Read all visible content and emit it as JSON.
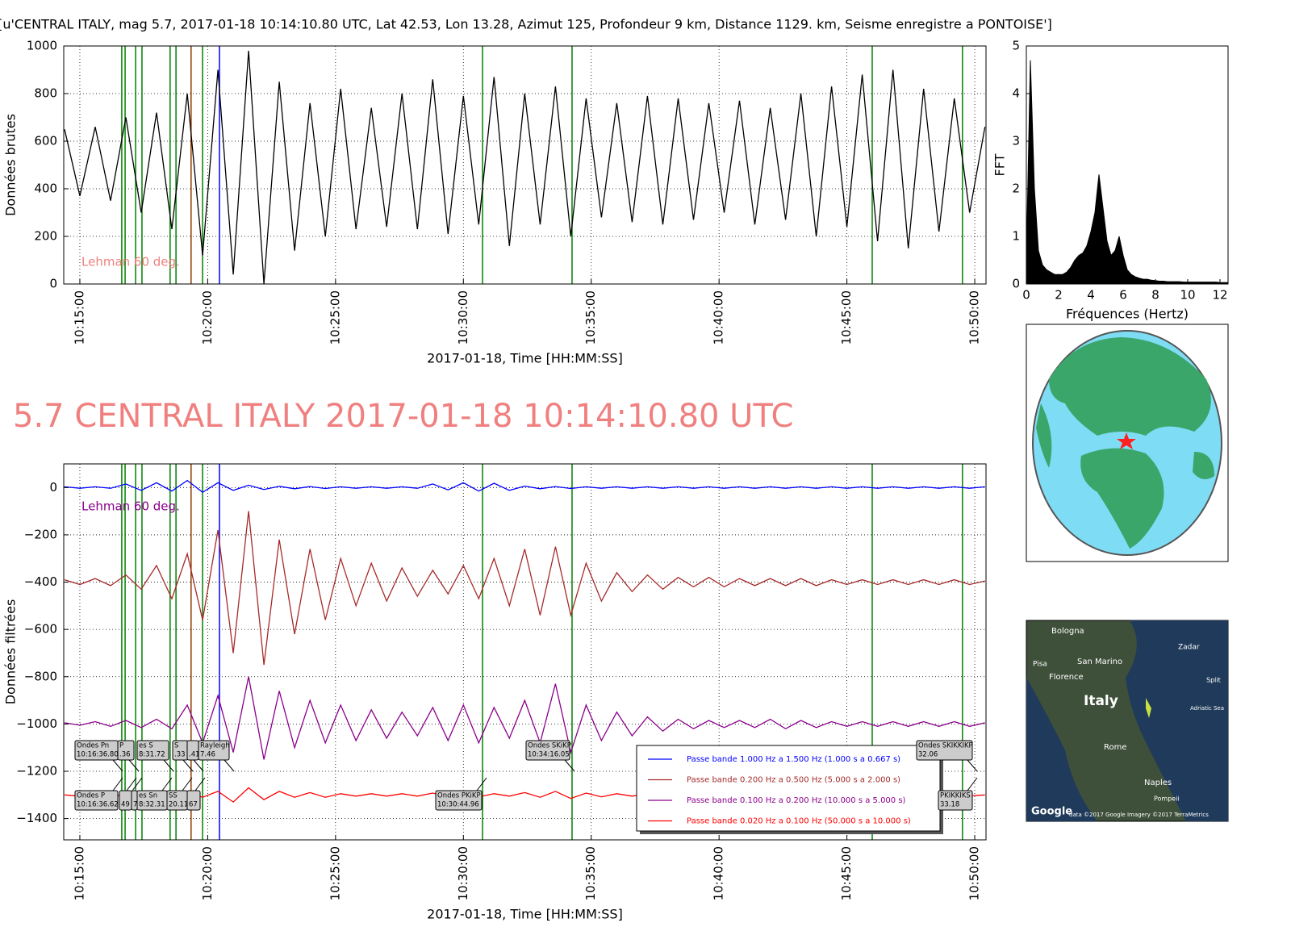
{
  "chart_data": [
    {
      "type": "line",
      "title": "[u'CENTRAL ITALY, mag 5.7, 2017-01-18 10:14:10.80 UTC, Lat 42.53, Lon 13.28, Azimut 125, Profondeur 9 km, Distance 1129. km, Seisme enregistre a PONTOISE']",
      "xlabel": "2017-01-18, Time [HH:MM:SS]",
      "ylabel": "Données brutes",
      "xlim": [
        14.37,
        50.44
      ],
      "ylim": [
        0,
        1000
      ],
      "xticks": [
        {
          "value": 15,
          "label": "10:15:00"
        },
        {
          "value": 20,
          "label": "10:20:00"
        },
        {
          "value": 25,
          "label": "10:25:00"
        },
        {
          "value": 30,
          "label": "10:30:00"
        },
        {
          "value": 35,
          "label": "10:35:00"
        },
        {
          "value": 40,
          "label": "10:40:00"
        },
        {
          "value": 45,
          "label": "10:45:00"
        },
        {
          "value": 50,
          "label": "10:50:00"
        }
      ],
      "yticks": [
        0,
        200,
        400,
        600,
        800,
        1000
      ],
      "grid": true,
      "x": [
        14.4,
        15.0,
        15.6,
        16.2,
        16.8,
        17.4,
        18.0,
        18.6,
        19.2,
        19.8,
        20.4,
        21.0,
        21.6,
        22.2,
        22.8,
        23.4,
        24.0,
        24.6,
        25.2,
        25.8,
        26.4,
        27.0,
        27.6,
        28.2,
        28.8,
        29.4,
        30.0,
        30.6,
        31.2,
        31.8,
        32.4,
        33.0,
        33.6,
        34.2,
        34.8,
        35.4,
        36.0,
        36.6,
        37.2,
        37.8,
        38.4,
        39.0,
        39.6,
        40.2,
        40.8,
        41.4,
        42.0,
        42.6,
        43.2,
        43.8,
        44.4,
        45.0,
        45.6,
        46.2,
        46.8,
        47.4,
        48.0,
        48.6,
        49.2,
        49.8,
        50.4
      ],
      "color": "#000000",
      "values": [
        650,
        370,
        660,
        350,
        700,
        300,
        720,
        230,
        800,
        120,
        900,
        40,
        980,
        0,
        850,
        140,
        760,
        200,
        820,
        230,
        740,
        240,
        800,
        230,
        860,
        210,
        790,
        250,
        870,
        160,
        800,
        250,
        830,
        200,
        780,
        280,
        760,
        260,
        790,
        250,
        780,
        270,
        760,
        300,
        770,
        250,
        740,
        270,
        800,
        200,
        830,
        240,
        880,
        180,
        900,
        150,
        820,
        220,
        780,
        300,
        660
      ],
      "markers": {
        "x": [
          16.64,
          16.77,
          17.18,
          17.43,
          18.53,
          18.76,
          19.35,
          19.8,
          20.46,
          30.75,
          34.25,
          45.99,
          49.52
        ],
        "colors": [
          "#008000",
          "#008000",
          "#008000",
          "#008000",
          "#008000",
          "#008000",
          "#8b3a00",
          "#008000",
          "#0000ff",
          "#008000",
          "#008000",
          "#008000",
          "#008000"
        ]
      },
      "note": {
        "text": "Lehman 60 deg.",
        "color": "#f08080"
      }
    },
    {
      "type": "area",
      "xlabel": "Fréquences (Hertz)",
      "ylabel": "FFT",
      "xlim": [
        0,
        12.5
      ],
      "ylim": [
        0,
        5
      ],
      "xticks": [
        0,
        2,
        4,
        6,
        8,
        10,
        12
      ],
      "yticks": [
        0,
        1,
        2,
        3,
        4,
        5
      ],
      "grid": false,
      "color": "#000000",
      "x": [
        0,
        0.25,
        0.5,
        0.75,
        1,
        1.25,
        1.5,
        1.75,
        2,
        2.25,
        2.5,
        2.75,
        3,
        3.25,
        3.5,
        3.75,
        4,
        4.25,
        4.5,
        4.75,
        5,
        5.25,
        5.5,
        5.75,
        6,
        6.25,
        6.5,
        6.75,
        7,
        7.25,
        7.5,
        7.75,
        8,
        8.25,
        8.5,
        8.75,
        9,
        9.25,
        9.5,
        9.75,
        10,
        10.25,
        10.5,
        10.75,
        11,
        11.25,
        11.5,
        11.75,
        12,
        12.25,
        12.5
      ],
      "values": [
        0.5,
        4.7,
        2.0,
        0.7,
        0.4,
        0.3,
        0.25,
        0.2,
        0.2,
        0.2,
        0.25,
        0.35,
        0.5,
        0.6,
        0.65,
        0.8,
        1.1,
        1.5,
        2.3,
        1.6,
        0.9,
        0.6,
        0.7,
        1.0,
        0.6,
        0.3,
        0.2,
        0.15,
        0.12,
        0.1,
        0.1,
        0.08,
        0.07,
        0.06,
        0.06,
        0.05,
        0.05,
        0.05,
        0.05,
        0.04,
        0.04,
        0.04,
        0.04,
        0.04,
        0.04,
        0.04,
        0.04,
        0.04,
        0.03,
        0.03,
        0.03
      ]
    },
    {
      "type": "line",
      "xlabel": "2017-01-18, Time [HH:MM:SS]",
      "ylabel": "Données filtrées",
      "xlim": [
        14.37,
        50.44
      ],
      "ylim": [
        -1490,
        100
      ],
      "xticks": [
        {
          "value": 15,
          "label": "10:15:00"
        },
        {
          "value": 20,
          "label": "10:20:00"
        },
        {
          "value": 25,
          "label": "10:25:00"
        },
        {
          "value": 30,
          "label": "10:30:00"
        },
        {
          "value": 35,
          "label": "10:35:00"
        },
        {
          "value": 40,
          "label": "10:40:00"
        },
        {
          "value": 45,
          "label": "10:45:00"
        },
        {
          "value": 50,
          "label": "10:50:00"
        }
      ],
      "yticks": [
        0,
        {
          "value": -200,
          "label": "−200"
        },
        {
          "value": -400,
          "label": "−400"
        },
        {
          "value": -600,
          "label": "−600"
        },
        {
          "value": -800,
          "label": "−800"
        },
        {
          "value": -1000,
          "label": "−1000"
        },
        {
          "value": -1200,
          "label": "−1200"
        },
        {
          "value": -1400,
          "label": "−1400"
        }
      ],
      "grid": true,
      "legend": "lower right",
      "x": [
        14.4,
        15.0,
        15.6,
        16.2,
        16.8,
        17.4,
        18.0,
        18.6,
        19.2,
        19.8,
        20.4,
        21.0,
        21.6,
        22.2,
        22.8,
        23.4,
        24.0,
        24.6,
        25.2,
        25.8,
        26.4,
        27.0,
        27.6,
        28.2,
        28.8,
        29.4,
        30.0,
        30.6,
        31.2,
        31.8,
        32.4,
        33.0,
        33.6,
        34.2,
        34.8,
        35.4,
        36.0,
        36.6,
        37.2,
        37.8,
        38.4,
        39.0,
        39.6,
        40.2,
        40.8,
        41.4,
        42.0,
        42.6,
        43.2,
        43.8,
        44.4,
        45.0,
        45.6,
        46.2,
        46.8,
        47.4,
        48.0,
        48.6,
        49.2,
        49.8,
        50.4
      ],
      "series": [
        {
          "name": "Passe bande 1.000 Hz a 1.500 Hz (1.000 s a 0.667 s)",
          "color": "#0000ff",
          "values": [
            3,
            -3,
            3,
            -3,
            15,
            -12,
            20,
            -15,
            30,
            -20,
            20,
            -12,
            10,
            -8,
            5,
            -5,
            4,
            -4,
            3,
            -3,
            3,
            -3,
            3,
            -3,
            15,
            -10,
            20,
            -15,
            18,
            -12,
            6,
            -5,
            4,
            -4,
            3,
            -3,
            3,
            -3,
            3,
            -3,
            3,
            -3,
            3,
            -3,
            3,
            -3,
            3,
            -3,
            3,
            -3,
            3,
            -3,
            3,
            -3,
            3,
            -3,
            3,
            -3,
            3,
            -3,
            3
          ]
        },
        {
          "name": "Passe bande 0.200 Hz a 0.500 Hz (5.000 s a 2.000 s)",
          "color": "#a52a2a",
          "values": [
            -390,
            -410,
            -385,
            -415,
            -370,
            -430,
            -330,
            -470,
            -280,
            -560,
            -180,
            -700,
            -100,
            -750,
            -220,
            -620,
            -260,
            -560,
            -300,
            -500,
            -320,
            -480,
            -340,
            -460,
            -350,
            -450,
            -330,
            -470,
            -300,
            -500,
            -260,
            -540,
            -250,
            -540,
            -320,
            -480,
            -360,
            -440,
            -370,
            -430,
            -380,
            -420,
            -380,
            -420,
            -385,
            -415,
            -385,
            -415,
            -385,
            -415,
            -390,
            -410,
            -390,
            -410,
            -390,
            -410,
            -390,
            -410,
            -390,
            -410,
            -395
          ]
        },
        {
          "name": "Passe bande 0.100 Hz a 0.200 Hz (10.000 s a 5.000 s)",
          "color": "#8b008b",
          "values": [
            -995,
            -1005,
            -990,
            -1010,
            -985,
            -1015,
            -980,
            -1020,
            -920,
            -1080,
            -880,
            -1120,
            -800,
            -1150,
            -860,
            -1100,
            -900,
            -1080,
            -920,
            -1070,
            -940,
            -1060,
            -950,
            -1050,
            -930,
            -1070,
            -920,
            -1080,
            -930,
            -1060,
            -900,
            -1080,
            -830,
            -1120,
            -920,
            -1070,
            -950,
            -1050,
            -970,
            -1030,
            -980,
            -1020,
            -985,
            -1015,
            -985,
            -1015,
            -980,
            -1020,
            -985,
            -1015,
            -990,
            -1010,
            -990,
            -1010,
            -990,
            -1010,
            -990,
            -1010,
            -990,
            -1010,
            -995
          ]
        },
        {
          "name": "Passe bande 0.020 Hz a 0.100 Hz (50.000 s a 10.000 s)",
          "color": "#ff0000",
          "values": [
            -1300,
            -1305,
            -1295,
            -1305,
            -1300,
            -1300,
            -1295,
            -1310,
            -1290,
            -1310,
            -1285,
            -1330,
            -1270,
            -1320,
            -1285,
            -1310,
            -1290,
            -1310,
            -1295,
            -1305,
            -1295,
            -1305,
            -1295,
            -1305,
            -1292,
            -1308,
            -1292,
            -1308,
            -1295,
            -1305,
            -1290,
            -1310,
            -1285,
            -1315,
            -1292,
            -1308,
            -1295,
            -1305,
            -1295,
            -1305,
            -1296,
            -1304,
            -1296,
            -1304,
            -1296,
            -1304,
            -1296,
            -1304,
            -1296,
            -1304,
            -1296,
            -1304,
            -1296,
            -1304,
            -1296,
            -1304,
            -1296,
            -1304,
            -1296,
            -1304,
            -1300
          ]
        }
      ],
      "markers": {
        "x": [
          16.64,
          16.77,
          17.18,
          17.43,
          18.53,
          18.76,
          19.35,
          19.8,
          20.46,
          30.75,
          34.25,
          45.99,
          49.52
        ],
        "colors": [
          "#008000",
          "#008000",
          "#008000",
          "#008000",
          "#008000",
          "#008000",
          "#8b3a00",
          "#008000",
          "#0000ff",
          "#008000",
          "#008000",
          "#008000",
          "#008000"
        ]
      },
      "note": {
        "text": "Lehman 60 deg.",
        "color": "#8b008b"
      },
      "annotations": [
        {
          "lines": [
            "Ondes Pn",
            "10:16:36.80"
          ]
        },
        {
          "lines": [
            "P",
            ".36"
          ]
        },
        {
          "lines": [
            "es S",
            "8:31.72"
          ]
        },
        {
          "lines": [
            "S",
            ".33"
          ]
        },
        {
          "lines": [
            "",
            ".41"
          ]
        },
        {
          "lines": [
            "Rayleigh",
            "7.46"
          ]
        },
        {
          "lines": [
            "Ondes SKiKP",
            "10:34:16.05"
          ]
        },
        {
          "lines": [
            "Ondes SKIKKIKP",
            "32.06"
          ]
        },
        {
          "lines": [
            "Ondes P",
            "10:16:36.62"
          ]
        },
        {
          "lines": [
            "",
            "49"
          ]
        },
        {
          "lines": [
            "",
            "7"
          ]
        },
        {
          "lines": [
            "es Sn",
            "8:32.31"
          ]
        },
        {
          "lines": [
            "SS",
            "20.11"
          ]
        },
        {
          "lines": [
            "",
            "67"
          ]
        },
        {
          "lines": [
            "Ondes PKiKP",
            "10:30:44.96"
          ]
        },
        {
          "lines": [
            "PKIKKIKS",
            "33.18"
          ]
        }
      ]
    }
  ],
  "headline": "5.7 CENTRAL ITALY 2017-01-18 10:14:10.80 UTC",
  "google_map": {
    "labels": [
      "Bologna",
      "Zadar",
      "Pisa",
      "San Marino",
      "Florence",
      "Split",
      "Italy",
      "Adriatic Sea",
      "Rome",
      "Naples",
      "Pompeii",
      "Google",
      "data ©2017 Google  Imagery ©2017 TerraMetrics"
    ]
  }
}
